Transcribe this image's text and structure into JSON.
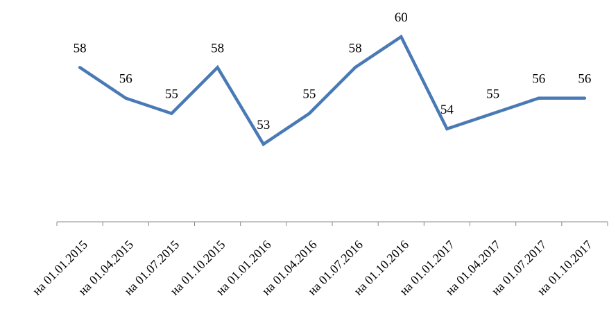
{
  "chart_data": {
    "type": "line",
    "title": "",
    "xlabel": "",
    "ylabel": "",
    "ylim": [
      40,
      62
    ],
    "grid": false,
    "legend": "none",
    "categories": [
      "на 01.01.2015",
      "на 01.04.2015",
      "на 01.07.2015",
      "на 01.10.2015",
      "на 01.01.2016",
      "на 01.04.2016",
      "на 01.07.2016",
      "на 01.10.2016",
      "на 01.01.2017",
      "на 01.04.2017",
      "на 01.07.2017",
      "на 01.10.2017"
    ],
    "series": [
      {
        "values": [
          58,
          56,
          55,
          58,
          53,
          55,
          58,
          60,
          54,
          55,
          56,
          56
        ],
        "color": "#4a7ab5"
      }
    ]
  }
}
